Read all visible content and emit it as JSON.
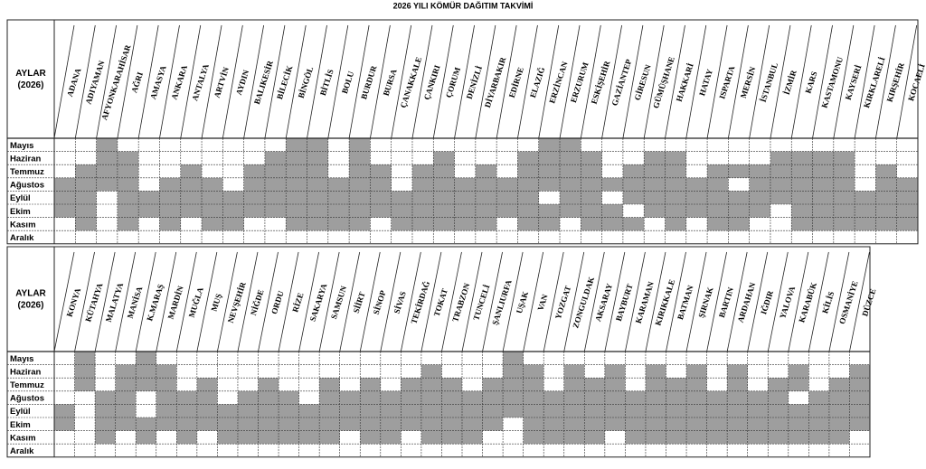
{
  "title": "2026 YILI KÖMÜR DAĞITIM TAKVİMİ",
  "blocks": [
    {
      "corner_label": [
        "AYLAR",
        "(2026)"
      ],
      "columns": [
        "ADANA",
        "ADIYAMAN",
        "AFYONKARAHİSAR",
        "AĞRI",
        "AMASYA",
        "ANKARA",
        "ANTALYA",
        "ARTVİN",
        "AYDIN",
        "BALIKESİR",
        "BİLECİK",
        "BİNGÖL",
        "BİTLİS",
        "BOLU",
        "BURDUR",
        "BURSA",
        "ÇANAKKALE",
        "ÇANKIRI",
        "ÇORUM",
        "DENİZLİ",
        "DİYARBAKIR",
        "EDİRNE",
        "ELAZIĞ",
        "ERZİNCAN",
        "ERZURUM",
        "ESKİŞEHİR",
        "GAZİANTEP",
        "GİRESUN",
        "GÜMÜŞHANE",
        "HAKKARİ",
        "HATAY",
        "ISPARTA",
        "MERSİN",
        "İSTANBUL",
        "İZMİR",
        "KARS",
        "KASTAMONU",
        "KAYSERİ",
        "KIRKLARELİ",
        "KIRŞEHİR",
        "KOCAELİ"
      ],
      "months": [
        "Mayıs",
        "Haziran",
        "Temmuz",
        "Ağustos",
        "Eylül",
        "Ekim",
        "Kasım",
        "Aralık"
      ],
      "shaded": [
        [
          0,
          0,
          1,
          0,
          0,
          0,
          0,
          0,
          0,
          0,
          0,
          1,
          1,
          0,
          1,
          0,
          0,
          0,
          0,
          0,
          0,
          0,
          0,
          1,
          1,
          0,
          0,
          0,
          0,
          0,
          0,
          0,
          0,
          0,
          0,
          0,
          0,
          0,
          0,
          0,
          0
        ],
        [
          0,
          0,
          1,
          1,
          0,
          0,
          0,
          0,
          0,
          0,
          1,
          1,
          1,
          0,
          1,
          0,
          0,
          0,
          1,
          0,
          0,
          0,
          1,
          1,
          1,
          1,
          0,
          0,
          1,
          1,
          0,
          0,
          0,
          0,
          1,
          1,
          1,
          1,
          0,
          0,
          0
        ],
        [
          0,
          1,
          1,
          1,
          0,
          0,
          1,
          0,
          0,
          1,
          1,
          1,
          1,
          0,
          1,
          1,
          0,
          1,
          1,
          0,
          1,
          0,
          1,
          1,
          1,
          1,
          0,
          1,
          1,
          1,
          0,
          1,
          1,
          1,
          1,
          1,
          1,
          1,
          0,
          1,
          0
        ],
        [
          1,
          1,
          1,
          1,
          0,
          1,
          1,
          1,
          0,
          1,
          1,
          1,
          1,
          1,
          1,
          1,
          0,
          1,
          1,
          1,
          1,
          1,
          1,
          1,
          1,
          1,
          1,
          1,
          1,
          1,
          1,
          1,
          0,
          1,
          1,
          1,
          1,
          1,
          0,
          1,
          1
        ],
        [
          1,
          1,
          0,
          1,
          1,
          1,
          1,
          1,
          1,
          1,
          1,
          1,
          1,
          1,
          1,
          1,
          1,
          1,
          1,
          1,
          1,
          1,
          1,
          0,
          1,
          1,
          0,
          1,
          1,
          1,
          1,
          1,
          1,
          1,
          1,
          1,
          1,
          1,
          1,
          1,
          1
        ],
        [
          1,
          1,
          0,
          1,
          1,
          1,
          1,
          1,
          1,
          1,
          1,
          1,
          1,
          1,
          1,
          1,
          1,
          1,
          1,
          1,
          1,
          1,
          1,
          1,
          1,
          1,
          1,
          0,
          1,
          1,
          1,
          1,
          1,
          1,
          0,
          1,
          1,
          1,
          1,
          1,
          1
        ],
        [
          0,
          1,
          0,
          1,
          0,
          1,
          0,
          1,
          1,
          0,
          0,
          1,
          1,
          1,
          1,
          0,
          1,
          1,
          1,
          1,
          1,
          0,
          1,
          1,
          0,
          1,
          1,
          1,
          0,
          1,
          0,
          1,
          1,
          0,
          0,
          1,
          1,
          1,
          1,
          1,
          1
        ],
        [
          0,
          0,
          0,
          0,
          0,
          0,
          0,
          0,
          0,
          0,
          0,
          0,
          0,
          0,
          0,
          0,
          0,
          0,
          0,
          0,
          0,
          0,
          0,
          0,
          0,
          0,
          0,
          0,
          0,
          0,
          0,
          0,
          0,
          0,
          0,
          0,
          0,
          0,
          0,
          0,
          0
        ]
      ]
    },
    {
      "corner_label": [
        "AYLAR",
        "(2026)"
      ],
      "columns": [
        "KONYA",
        "KÜTAHYA",
        "MALATYA",
        "MANİSA",
        "K.MARAŞ",
        "MARDİN",
        "MUĞLA",
        "MUŞ",
        "NEVŞEHİR",
        "NİĞDE",
        "ORDU",
        "RİZE",
        "SAKARYA",
        "SAMSUN",
        "SİİRT",
        "SİNOP",
        "SİVAS",
        "TEKİRDAĞ",
        "TOKAT",
        "TRABZON",
        "TUNCELİ",
        "ŞANLIURFA",
        "UŞAK",
        "VAN",
        "YOZGAT",
        "ZONGULDAK",
        "AKSARAY",
        "BAYBURT",
        "KARAMAN",
        "KIRIKKALE",
        "BATMAN",
        "ŞIRNAK",
        "BARTIN",
        "ARDAHAN",
        "IĞDIR",
        "YALOVA",
        "KARABÜK",
        "KİLİS",
        "OSMANİYE",
        "DÜZCE"
      ],
      "months": [
        "Mayıs",
        "Haziran",
        "Temmuz",
        "Ağustos",
        "Eylül",
        "Ekim",
        "Kasım",
        "Aralık"
      ],
      "shaded": [
        [
          0,
          1,
          0,
          0,
          1,
          0,
          0,
          0,
          0,
          0,
          0,
          0,
          0,
          0,
          0,
          0,
          0,
          0,
          0,
          0,
          0,
          0,
          1,
          0,
          0,
          0,
          0,
          0,
          0,
          0,
          0,
          0,
          0,
          0,
          0,
          0,
          0,
          0,
          0,
          0
        ],
        [
          0,
          1,
          0,
          1,
          1,
          1,
          0,
          0,
          0,
          0,
          0,
          0,
          0,
          0,
          0,
          0,
          0,
          0,
          1,
          0,
          0,
          0,
          1,
          1,
          0,
          1,
          0,
          1,
          0,
          1,
          0,
          1,
          0,
          1,
          0,
          0,
          1,
          0,
          0,
          1
        ],
        [
          0,
          1,
          0,
          1,
          1,
          1,
          0,
          1,
          0,
          0,
          1,
          0,
          0,
          1,
          0,
          1,
          0,
          1,
          1,
          1,
          0,
          1,
          1,
          1,
          0,
          1,
          1,
          1,
          0,
          1,
          1,
          1,
          0,
          1,
          0,
          1,
          1,
          0,
          1,
          1
        ],
        [
          0,
          0,
          1,
          1,
          0,
          1,
          1,
          1,
          0,
          1,
          1,
          1,
          0,
          1,
          1,
          1,
          1,
          1,
          1,
          1,
          1,
          1,
          1,
          1,
          1,
          1,
          1,
          1,
          1,
          1,
          1,
          1,
          1,
          1,
          1,
          1,
          0,
          1,
          1,
          1
        ],
        [
          1,
          0,
          1,
          1,
          0,
          1,
          1,
          1,
          1,
          1,
          1,
          1,
          1,
          1,
          1,
          1,
          1,
          1,
          1,
          1,
          1,
          1,
          1,
          1,
          1,
          1,
          1,
          1,
          1,
          1,
          1,
          1,
          1,
          1,
          1,
          1,
          1,
          1,
          1,
          1
        ],
        [
          1,
          0,
          1,
          1,
          1,
          1,
          1,
          1,
          1,
          1,
          1,
          1,
          1,
          1,
          1,
          1,
          1,
          1,
          1,
          1,
          1,
          1,
          0,
          1,
          1,
          1,
          1,
          1,
          1,
          1,
          1,
          1,
          1,
          1,
          1,
          1,
          1,
          1,
          1,
          1
        ],
        [
          0,
          0,
          1,
          0,
          1,
          0,
          1,
          0,
          1,
          1,
          1,
          1,
          1,
          1,
          0,
          1,
          1,
          0,
          1,
          1,
          1,
          0,
          0,
          1,
          1,
          1,
          1,
          0,
          1,
          1,
          1,
          1,
          1,
          1,
          1,
          1,
          1,
          1,
          1,
          0
        ],
        [
          0,
          0,
          0,
          0,
          0,
          0,
          0,
          0,
          0,
          0,
          0,
          0,
          0,
          0,
          0,
          0,
          0,
          0,
          0,
          0,
          0,
          0,
          0,
          0,
          0,
          0,
          0,
          0,
          0,
          0,
          0,
          0,
          0,
          0,
          0,
          0,
          0,
          0,
          0,
          0
        ]
      ]
    }
  ]
}
